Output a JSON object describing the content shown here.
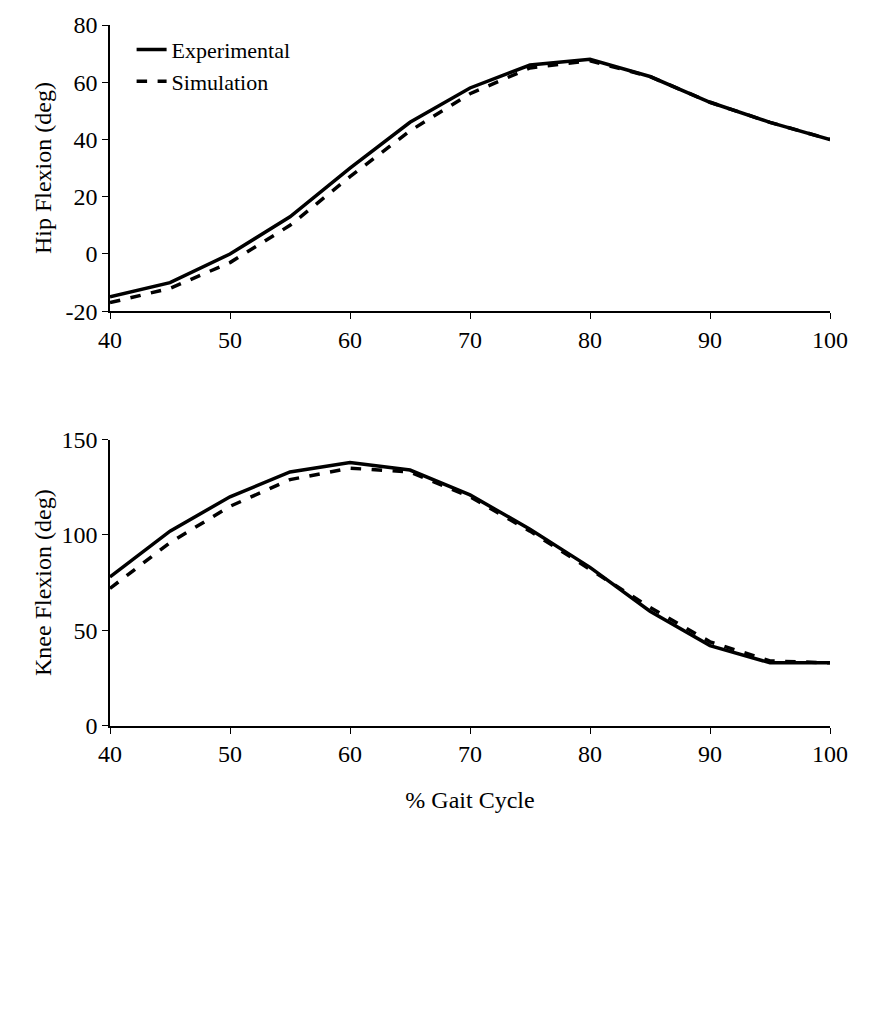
{
  "chart_data": [
    {
      "type": "line",
      "y_label": "Hip Flexion (deg)",
      "x": [
        40,
        45,
        50,
        55,
        60,
        65,
        70,
        75,
        80,
        85,
        90,
        95,
        100
      ],
      "series": [
        {
          "name": "Experimental",
          "color": "#000000",
          "line_style": "solid",
          "values": [
            -15,
            -10,
            0,
            13,
            30,
            46,
            58,
            66,
            68,
            62,
            53,
            46,
            40
          ]
        },
        {
          "name": "Simulation",
          "color": "#000000",
          "line_style": "dash",
          "values": [
            -17,
            -12,
            -3,
            10,
            27,
            43,
            56,
            65,
            67.5,
            62,
            53,
            46,
            40
          ]
        }
      ],
      "xlim": [
        40,
        100
      ],
      "xticks": [
        40,
        50,
        60,
        70,
        80,
        90,
        100
      ],
      "ylim": [
        -20,
        80
      ],
      "yticks": [
        -20,
        0,
        20,
        40,
        60,
        80
      ],
      "grid": false,
      "legend": "upper left"
    },
    {
      "type": "line",
      "x_label": "% Gait Cycle",
      "y_label": "Knee Flexion (deg)",
      "x": [
        40,
        45,
        50,
        55,
        60,
        65,
        70,
        75,
        80,
        85,
        90,
        95,
        100
      ],
      "series": [
        {
          "name": "Experimental",
          "color": "#000000",
          "line_style": "solid",
          "values": [
            78,
            102,
            120,
            133,
            138,
            134,
            121,
            103,
            83,
            60,
            42,
            33,
            33
          ]
        },
        {
          "name": "Simulation",
          "color": "#000000",
          "line_style": "dash",
          "values": [
            72,
            96,
            115,
            129,
            135,
            133,
            120,
            102,
            82,
            62,
            44,
            34,
            33
          ]
        }
      ],
      "xlim": [
        40,
        100
      ],
      "xticks": [
        40,
        50,
        60,
        70,
        80,
        90,
        100
      ],
      "ylim": [
        0,
        150
      ],
      "yticks": [
        0,
        50,
        100,
        150
      ],
      "grid": false
    }
  ]
}
